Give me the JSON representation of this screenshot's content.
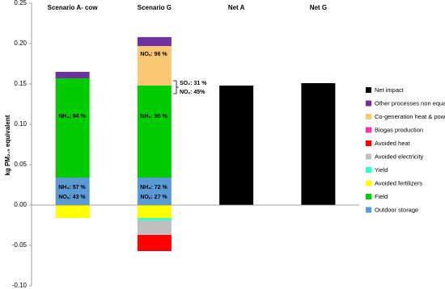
{
  "chart_data": {
    "type": "stacked_bar",
    "y_label": "kg PM₂.₅ equivalent",
    "categories": [
      "Scenario A- cow",
      "Scenario G",
      "Net A",
      "Net G"
    ],
    "ylim": [
      -0.1,
      0.25
    ],
    "yticks": [
      {
        "value": -0.1,
        "label": "-0.10"
      },
      -0.05,
      {
        "value": 0,
        "label": "0.00"
      },
      0.05,
      {
        "value": 0.1,
        "label": "0.10"
      },
      0.15,
      {
        "value": 0.2,
        "label": "0.20"
      },
      0.25
    ],
    "series": [
      {
        "name": "Net impact",
        "color": "#000000",
        "values": [
          null,
          null,
          0.148,
          0.151
        ]
      },
      {
        "name": "Other processes non equal",
        "color": "#7030a0",
        "values": [
          0.008,
          0.011,
          null,
          null
        ]
      },
      {
        "name": "Co-generation heat & power",
        "color": "#fac775",
        "values": [
          null,
          0.049,
          null,
          null
        ]
      },
      {
        "name": "Biogas production",
        "color": "#ff3399",
        "values": [
          null,
          null,
          null,
          null
        ]
      },
      {
        "name": "Avoided heat",
        "color": "#ff0000",
        "values": [
          null,
          -0.02,
          null,
          null
        ]
      },
      {
        "name": "Avoided electricity",
        "color": "#bfbfbf",
        "values": [
          null,
          -0.018,
          null,
          null
        ]
      },
      {
        "name": "Yield",
        "color": "#33ffcc",
        "values": [
          null,
          -0.003,
          null,
          null
        ]
      },
      {
        "name": "Avoided fertilizers",
        "color": "#ffff00",
        "values": [
          -0.016,
          -0.016,
          null,
          null
        ]
      },
      {
        "name": "Field",
        "color": "#00cc00",
        "values": [
          0.123,
          0.114,
          null,
          null
        ]
      },
      {
        "name": "Outdoor storage",
        "color": "#5b9bd5",
        "values": [
          0.034,
          0.034,
          null,
          null
        ]
      }
    ],
    "annotations": [
      "NH₃: 94 %",
      "NH₃: 95 %",
      "NOₓ: 96 %",
      "NH₃: 57 %",
      "NOₓ: 43 %",
      "NH₃: 72 %",
      "NOₓ: 27 %",
      "SO₂: 31 %",
      "NOₓ: 45%"
    ]
  }
}
